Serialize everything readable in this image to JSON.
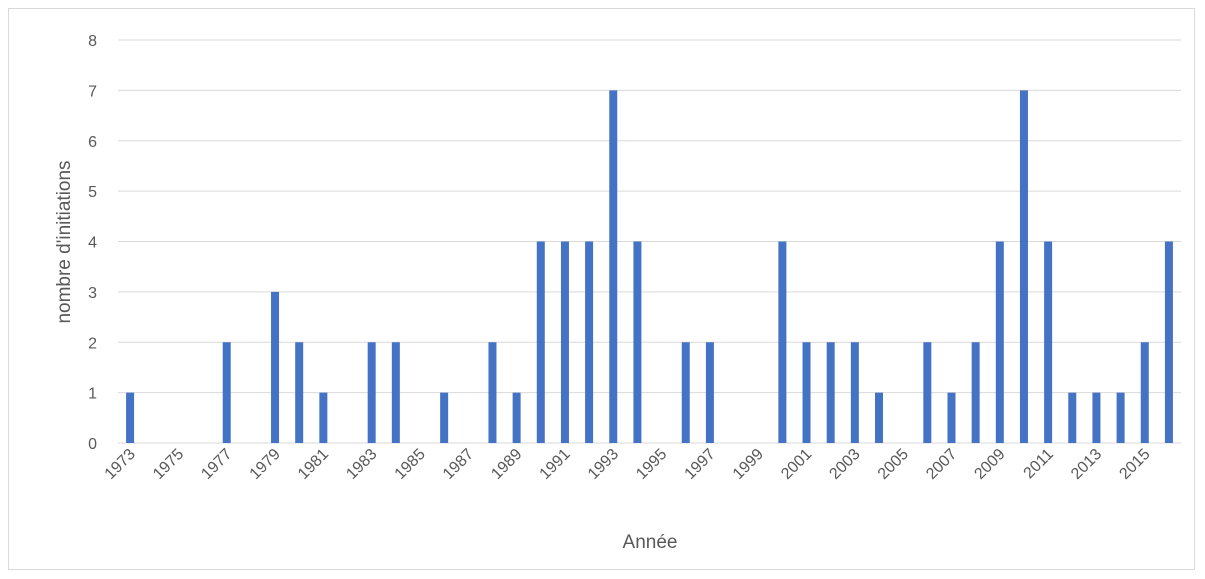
{
  "chart_data": {
    "type": "bar",
    "title": "",
    "xlabel": "Année",
    "ylabel": "nombre d'initiations",
    "ylim": [
      0,
      8
    ],
    "yticks": [
      0,
      1,
      2,
      3,
      4,
      5,
      6,
      7,
      8
    ],
    "grid": true,
    "legend": "none",
    "categories": [
      "1973",
      "1974",
      "1975",
      "1976",
      "1977",
      "1978",
      "1979",
      "1980",
      "1981",
      "1982",
      "1983",
      "1984",
      "1985",
      "1986",
      "1987",
      "1988",
      "1989",
      "1990",
      "1991",
      "1992",
      "1993",
      "1994",
      "1995",
      "1996",
      "1997",
      "1998",
      "1999",
      "2000",
      "2001",
      "2002",
      "2003",
      "2004",
      "2005",
      "2006",
      "2007",
      "2008",
      "2009",
      "2010",
      "2011",
      "2012",
      "2013",
      "2014",
      "2015",
      "2016"
    ],
    "x_tick_labels": [
      "1973",
      "1975",
      "1977",
      "1979",
      "1981",
      "1983",
      "1985",
      "1987",
      "1989",
      "1991",
      "1993",
      "1995",
      "1997",
      "1999",
      "2001",
      "2003",
      "2005",
      "2007",
      "2009",
      "2011",
      "2013",
      "2015"
    ],
    "values": [
      1,
      0,
      0,
      0,
      2,
      0,
      3,
      2,
      1,
      0,
      2,
      2,
      0,
      1,
      0,
      2,
      1,
      4,
      4,
      4,
      7,
      4,
      0,
      2,
      2,
      0,
      0,
      4,
      2,
      2,
      2,
      1,
      0,
      2,
      1,
      2,
      4,
      7,
      4,
      1,
      1,
      1,
      2,
      4
    ],
    "colors": {
      "bar": "#4472c4",
      "grid": "#d9d9d9",
      "text": "#595959"
    }
  }
}
